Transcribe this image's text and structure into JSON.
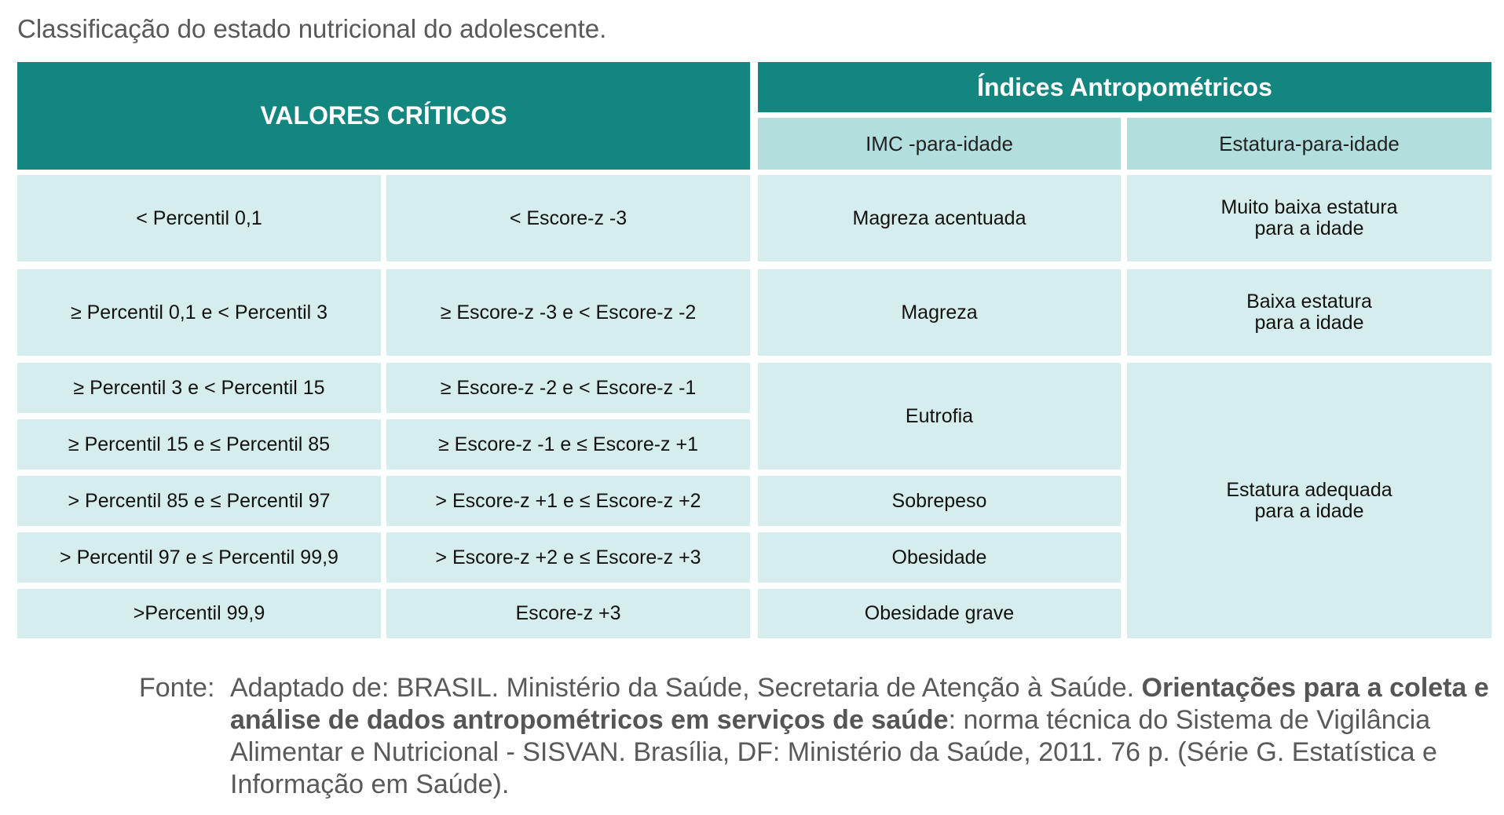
{
  "title": "Classificação do estado nutricional do adolescente.",
  "header": {
    "valores": "VALORES CRÍTICOS",
    "indices": "Índices Antropométricos",
    "imc": "IMC -para-idade",
    "estatura": "Estatura-para-idade"
  },
  "rows": [
    {
      "percentil": "< Percentil 0,1",
      "escore": "< Escore-z -3"
    },
    {
      "percentil": "≥ Percentil 0,1 e < Percentil 3",
      "escore": "≥ Escore-z -3 e < Escore-z -2"
    },
    {
      "percentil": "≥ Percentil 3 e < Percentil 15",
      "escore": "≥ Escore-z -2 e < Escore-z -1"
    },
    {
      "percentil": "≥ Percentil 15 e ≤ Percentil 85",
      "escore": "≥ Escore-z -1 e ≤ Escore-z +1"
    },
    {
      "percentil": "> Percentil 85 e ≤ Percentil 97",
      "escore": "> Escore-z +1 e ≤ Escore-z +2"
    },
    {
      "percentil": "> Percentil 97 e ≤ Percentil 99,9",
      "escore": "> Escore-z +2 e ≤ Escore-z +3"
    },
    {
      "percentil": ">Percentil 99,9",
      "escore": "Escore-z +3"
    }
  ],
  "imc": [
    "Magreza acentuada",
    "Magreza",
    "Eutrofia",
    "Sobrepeso",
    "Obesidade",
    "Obesidade grave"
  ],
  "estatura": [
    {
      "l1": "Muito baixa estatura",
      "l2": "para a idade"
    },
    {
      "l1": "Baixa estatura",
      "l2": "para a idade"
    },
    {
      "l1": "Estatura adequada",
      "l2": "para a idade"
    }
  ],
  "source": {
    "label": "Fonte:",
    "pre": "Adaptado de: BRASIL. Ministério da Saúde, Secretaria de Atenção à Saúde. ",
    "bold": "Orientações para a coleta e análise de dados antropométricos em serviços de saúde",
    "post": ": norma técnica do Sistema de Vigilância Alimentar e Nutricional - SISVAN. Brasília, DF: Ministério da Saúde, 2011. 76 p. (Série G. Estatística e Informação em Saúde)."
  },
  "colors": {
    "header": "#13877F",
    "subheader": "#B3DEDE",
    "cell": "#D6EDED"
  }
}
